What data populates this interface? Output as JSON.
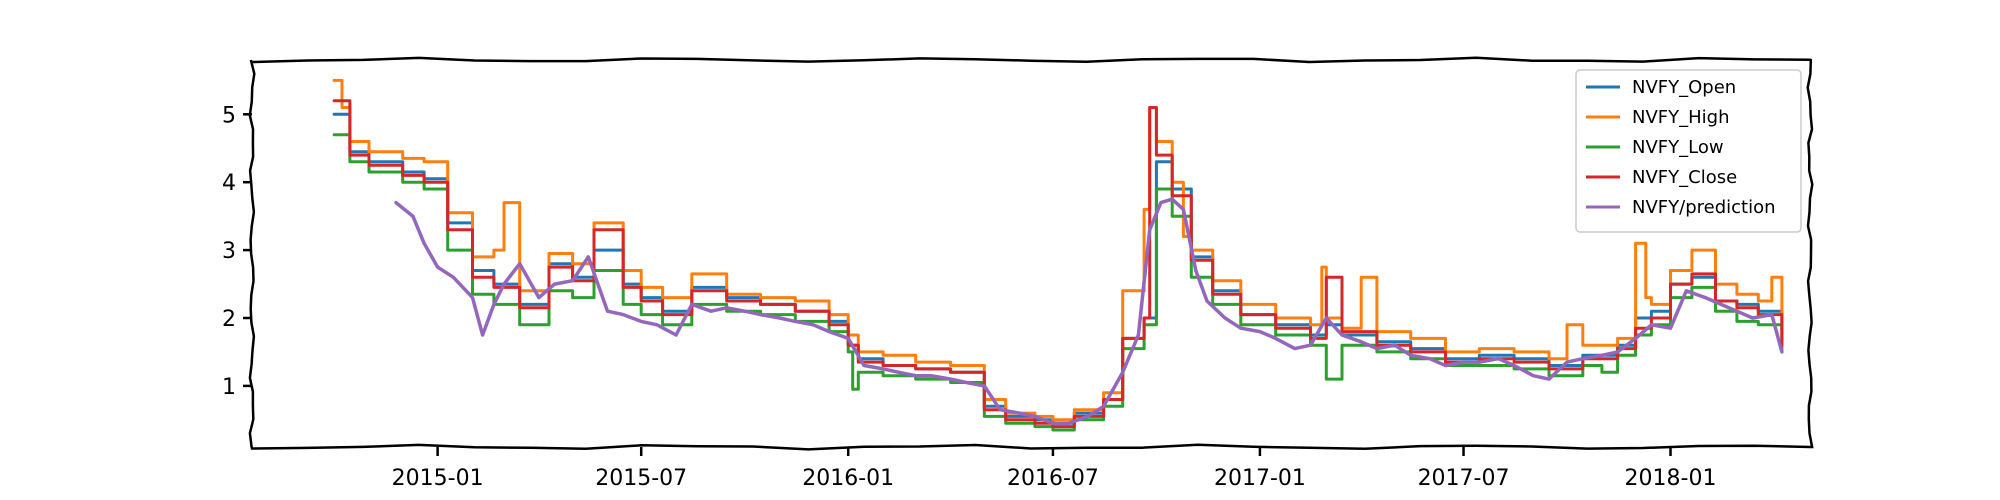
{
  "chart_data": {
    "type": "line",
    "x_type": "date",
    "xlim": [
      "2014-07-20",
      "2018-05-05"
    ],
    "ylim": [
      0.1,
      5.8
    ],
    "grid": false,
    "legend_position": "top-right",
    "xticks": [
      "2015-01-01",
      "2015-07-01",
      "2016-01-01",
      "2016-07-01",
      "2017-01-01",
      "2017-07-01",
      "2018-01-01"
    ],
    "xtick_labels": [
      "2015-01",
      "2015-07",
      "2016-01",
      "2016-07",
      "2017-01",
      "2017-07",
      "2018-01"
    ],
    "yticks": [
      1,
      2,
      3,
      4,
      5
    ],
    "ytick_labels": [
      "1",
      "2",
      "3",
      "4",
      "5"
    ],
    "series": [
      {
        "name": "NVFY_Open",
        "color": "#1f77b4",
        "style": "step",
        "width": 3,
        "x": [
          "2014-10-01",
          "2014-10-15",
          "2014-11-01",
          "2014-12-01",
          "2014-12-20",
          "2015-01-10",
          "2015-02-01",
          "2015-02-20",
          "2015-03-15",
          "2015-04-10",
          "2015-05-01",
          "2015-05-20",
          "2015-06-15",
          "2015-07-01",
          "2015-07-20",
          "2015-08-15",
          "2015-09-15",
          "2015-10-15",
          "2015-11-15",
          "2015-12-15",
          "2016-01-01",
          "2016-01-10",
          "2016-02-01",
          "2016-03-01",
          "2016-04-01",
          "2016-05-01",
          "2016-05-20",
          "2016-06-15",
          "2016-07-01",
          "2016-07-20",
          "2016-08-15",
          "2016-09-01",
          "2016-09-20",
          "2016-10-01",
          "2016-10-15",
          "2016-11-01",
          "2016-11-20",
          "2016-12-15",
          "2017-01-15",
          "2017-02-15",
          "2017-03-01",
          "2017-03-15",
          "2017-04-15",
          "2017-05-15",
          "2017-06-15",
          "2017-07-15",
          "2017-08-15",
          "2017-09-15",
          "2017-10-15",
          "2017-11-15",
          "2017-12-01",
          "2017-12-15",
          "2018-01-01",
          "2018-01-20",
          "2018-02-10",
          "2018-03-01",
          "2018-03-20",
          "2018-04-01",
          "2018-04-10"
        ],
        "y": [
          5.0,
          4.45,
          4.3,
          4.15,
          4.05,
          3.4,
          2.7,
          2.5,
          2.2,
          2.8,
          2.6,
          3.0,
          2.5,
          2.3,
          2.1,
          2.45,
          2.3,
          2.2,
          2.1,
          1.95,
          1.6,
          1.4,
          1.3,
          1.25,
          1.2,
          0.7,
          0.55,
          0.5,
          0.45,
          0.6,
          0.8,
          1.7,
          2.0,
          4.3,
          3.9,
          2.9,
          2.4,
          2.05,
          1.9,
          1.75,
          1.9,
          1.75,
          1.65,
          1.55,
          1.4,
          1.45,
          1.4,
          1.3,
          1.45,
          1.6,
          2.0,
          2.1,
          2.5,
          2.6,
          2.25,
          2.2,
          2.1,
          2.1,
          1.7
        ]
      },
      {
        "name": "NVFY_High",
        "color": "#ff7f0e",
        "style": "step",
        "width": 3,
        "x": [
          "2014-10-01",
          "2014-10-08",
          "2014-10-15",
          "2014-11-01",
          "2014-12-01",
          "2014-12-20",
          "2015-01-10",
          "2015-02-01",
          "2015-02-20",
          "2015-03-01",
          "2015-03-15",
          "2015-04-10",
          "2015-05-01",
          "2015-05-20",
          "2015-06-15",
          "2015-07-01",
          "2015-07-20",
          "2015-08-15",
          "2015-09-15",
          "2015-10-15",
          "2015-11-15",
          "2015-12-15",
          "2016-01-01",
          "2016-01-10",
          "2016-02-01",
          "2016-03-01",
          "2016-04-01",
          "2016-05-01",
          "2016-05-20",
          "2016-06-15",
          "2016-07-01",
          "2016-07-20",
          "2016-08-15",
          "2016-09-01",
          "2016-09-20",
          "2016-09-25",
          "2016-10-01",
          "2016-10-15",
          "2016-10-25",
          "2016-11-01",
          "2016-11-20",
          "2016-12-15",
          "2017-01-15",
          "2017-02-15",
          "2017-02-25",
          "2017-03-01",
          "2017-03-15",
          "2017-04-01",
          "2017-04-15",
          "2017-05-15",
          "2017-06-15",
          "2017-07-15",
          "2017-08-15",
          "2017-09-15",
          "2017-10-01",
          "2017-10-15",
          "2017-11-15",
          "2017-12-01",
          "2017-12-10",
          "2017-12-15",
          "2018-01-01",
          "2018-01-20",
          "2018-02-10",
          "2018-03-01",
          "2018-03-20",
          "2018-04-01",
          "2018-04-10"
        ],
        "y": [
          5.5,
          5.1,
          4.6,
          4.45,
          4.35,
          4.3,
          3.55,
          2.9,
          3.0,
          3.7,
          2.4,
          2.95,
          2.8,
          3.4,
          2.7,
          2.45,
          2.3,
          2.65,
          2.35,
          2.3,
          2.25,
          2.05,
          1.75,
          1.5,
          1.45,
          1.35,
          1.3,
          0.8,
          0.6,
          0.55,
          0.5,
          0.65,
          0.9,
          2.4,
          3.6,
          5.1,
          4.6,
          4.0,
          3.2,
          3.0,
          2.55,
          2.2,
          2.0,
          1.9,
          2.75,
          2.0,
          1.85,
          2.6,
          1.8,
          1.7,
          1.5,
          1.55,
          1.5,
          1.4,
          1.9,
          1.6,
          1.7,
          3.1,
          2.3,
          2.2,
          2.7,
          3.0,
          2.5,
          2.35,
          2.25,
          2.6,
          1.8
        ]
      },
      {
        "name": "NVFY_Low",
        "color": "#2ca02c",
        "style": "step",
        "width": 3,
        "x": [
          "2014-10-01",
          "2014-10-15",
          "2014-11-01",
          "2014-12-01",
          "2014-12-20",
          "2015-01-10",
          "2015-02-01",
          "2015-02-20",
          "2015-03-15",
          "2015-04-10",
          "2015-05-01",
          "2015-05-20",
          "2015-06-15",
          "2015-07-01",
          "2015-07-20",
          "2015-08-15",
          "2015-09-15",
          "2015-10-15",
          "2015-11-15",
          "2015-12-15",
          "2016-01-01",
          "2016-01-05",
          "2016-01-10",
          "2016-02-01",
          "2016-03-01",
          "2016-04-01",
          "2016-05-01",
          "2016-05-20",
          "2016-06-15",
          "2016-07-01",
          "2016-07-20",
          "2016-08-15",
          "2016-09-01",
          "2016-09-20",
          "2016-10-01",
          "2016-10-15",
          "2016-11-01",
          "2016-11-20",
          "2016-12-15",
          "2017-01-15",
          "2017-02-15",
          "2017-03-01",
          "2017-03-15",
          "2017-04-15",
          "2017-05-15",
          "2017-06-15",
          "2017-07-15",
          "2017-08-15",
          "2017-09-15",
          "2017-10-15",
          "2017-11-01",
          "2017-11-15",
          "2017-12-01",
          "2017-12-15",
          "2018-01-01",
          "2018-01-20",
          "2018-02-10",
          "2018-03-01",
          "2018-03-20",
          "2018-04-01",
          "2018-04-10"
        ],
        "y": [
          4.7,
          4.3,
          4.15,
          4.0,
          3.9,
          3.0,
          2.35,
          2.2,
          1.9,
          2.4,
          2.3,
          2.7,
          2.2,
          2.05,
          1.9,
          2.2,
          2.1,
          2.05,
          1.95,
          1.8,
          1.5,
          0.95,
          1.2,
          1.15,
          1.1,
          1.05,
          0.55,
          0.45,
          0.4,
          0.35,
          0.5,
          0.7,
          1.55,
          1.9,
          3.9,
          3.5,
          2.6,
          2.2,
          1.9,
          1.75,
          1.6,
          1.1,
          1.6,
          1.5,
          1.4,
          1.3,
          1.3,
          1.25,
          1.15,
          1.3,
          1.2,
          1.45,
          1.75,
          1.9,
          2.3,
          2.45,
          2.1,
          1.95,
          1.9,
          1.9,
          1.5
        ]
      },
      {
        "name": "NVFY_Close",
        "color": "#d62728",
        "style": "step",
        "width": 3,
        "x": [
          "2014-10-01",
          "2014-10-15",
          "2014-11-01",
          "2014-12-01",
          "2014-12-20",
          "2015-01-10",
          "2015-02-01",
          "2015-02-20",
          "2015-03-15",
          "2015-04-10",
          "2015-05-01",
          "2015-05-20",
          "2015-06-15",
          "2015-07-01",
          "2015-07-20",
          "2015-08-15",
          "2015-09-15",
          "2015-10-15",
          "2015-11-15",
          "2015-12-15",
          "2016-01-01",
          "2016-01-10",
          "2016-02-01",
          "2016-03-01",
          "2016-04-01",
          "2016-05-01",
          "2016-05-20",
          "2016-06-15",
          "2016-07-01",
          "2016-07-20",
          "2016-08-15",
          "2016-09-01",
          "2016-09-20",
          "2016-09-25",
          "2016-10-01",
          "2016-10-15",
          "2016-11-01",
          "2016-11-20",
          "2016-12-15",
          "2017-01-15",
          "2017-02-15",
          "2017-03-01",
          "2017-03-15",
          "2017-04-15",
          "2017-05-15",
          "2017-06-15",
          "2017-07-15",
          "2017-08-15",
          "2017-09-15",
          "2017-10-15",
          "2017-11-15",
          "2017-12-01",
          "2017-12-15",
          "2018-01-01",
          "2018-01-20",
          "2018-02-10",
          "2018-03-01",
          "2018-03-20",
          "2018-04-01",
          "2018-04-10"
        ],
        "y": [
          5.2,
          4.4,
          4.25,
          4.1,
          4.0,
          3.3,
          2.6,
          2.45,
          2.15,
          2.75,
          2.55,
          3.3,
          2.45,
          2.25,
          2.05,
          2.4,
          2.25,
          2.2,
          2.1,
          1.9,
          1.6,
          1.35,
          1.3,
          1.25,
          1.2,
          0.65,
          0.5,
          0.45,
          0.4,
          0.55,
          0.8,
          1.7,
          2.0,
          5.1,
          4.4,
          3.8,
          2.85,
          2.35,
          2.05,
          1.85,
          1.7,
          2.6,
          1.8,
          1.6,
          1.5,
          1.35,
          1.4,
          1.35,
          1.25,
          1.4,
          1.55,
          1.85,
          2.0,
          2.5,
          2.65,
          2.25,
          2.15,
          2.05,
          2.05,
          1.6
        ]
      },
      {
        "name": "NVFY/prediction",
        "color": "#9467bd",
        "style": "smooth",
        "width": 3.5,
        "x": [
          "2014-11-25",
          "2014-12-10",
          "2014-12-20",
          "2015-01-01",
          "2015-01-15",
          "2015-02-01",
          "2015-02-10",
          "2015-02-20",
          "2015-03-01",
          "2015-03-15",
          "2015-04-01",
          "2015-04-15",
          "2015-05-01",
          "2015-05-15",
          "2015-06-01",
          "2015-06-15",
          "2015-07-01",
          "2015-07-15",
          "2015-08-01",
          "2015-08-15",
          "2015-09-01",
          "2015-09-15",
          "2015-10-01",
          "2015-10-15",
          "2015-11-01",
          "2015-11-15",
          "2015-12-01",
          "2015-12-15",
          "2016-01-01",
          "2016-01-15",
          "2016-02-01",
          "2016-02-15",
          "2016-03-01",
          "2016-03-15",
          "2016-04-01",
          "2016-04-15",
          "2016-05-01",
          "2016-05-15",
          "2016-06-01",
          "2016-06-15",
          "2016-07-01",
          "2016-07-15",
          "2016-08-01",
          "2016-08-15",
          "2016-09-01",
          "2016-09-15",
          "2016-09-25",
          "2016-10-05",
          "2016-10-15",
          "2016-10-25",
          "2016-11-05",
          "2016-11-15",
          "2016-12-01",
          "2016-12-15",
          "2017-01-01",
          "2017-01-15",
          "2017-02-01",
          "2017-02-15",
          "2017-03-01",
          "2017-03-15",
          "2017-04-01",
          "2017-04-15",
          "2017-05-01",
          "2017-05-15",
          "2017-06-01",
          "2017-06-15",
          "2017-07-01",
          "2017-07-15",
          "2017-08-01",
          "2017-08-15",
          "2017-09-01",
          "2017-09-15",
          "2017-10-01",
          "2017-10-15",
          "2017-11-01",
          "2017-11-15",
          "2017-12-01",
          "2017-12-15",
          "2018-01-01",
          "2018-01-15",
          "2018-02-01",
          "2018-02-15",
          "2018-03-01",
          "2018-03-15",
          "2018-04-01",
          "2018-04-10"
        ],
        "y": [
          3.7,
          3.5,
          3.1,
          2.75,
          2.6,
          2.3,
          1.75,
          2.2,
          2.5,
          2.8,
          2.3,
          2.5,
          2.55,
          2.9,
          2.1,
          2.05,
          1.95,
          1.9,
          1.75,
          2.2,
          2.1,
          2.15,
          2.1,
          2.05,
          2.0,
          1.95,
          1.9,
          1.8,
          1.7,
          1.3,
          1.25,
          1.2,
          1.15,
          1.15,
          1.1,
          1.05,
          1.0,
          0.65,
          0.6,
          0.55,
          0.45,
          0.45,
          0.55,
          0.7,
          1.2,
          1.75,
          3.3,
          3.7,
          3.75,
          3.6,
          2.7,
          2.25,
          2.0,
          1.85,
          1.8,
          1.7,
          1.55,
          1.6,
          2.0,
          1.75,
          1.65,
          1.55,
          1.6,
          1.45,
          1.4,
          1.3,
          1.35,
          1.35,
          1.4,
          1.3,
          1.15,
          1.1,
          1.35,
          1.4,
          1.45,
          1.5,
          1.7,
          1.9,
          1.85,
          2.4,
          2.3,
          2.2,
          2.1,
          2.0,
          2.05,
          1.5
        ]
      }
    ]
  }
}
